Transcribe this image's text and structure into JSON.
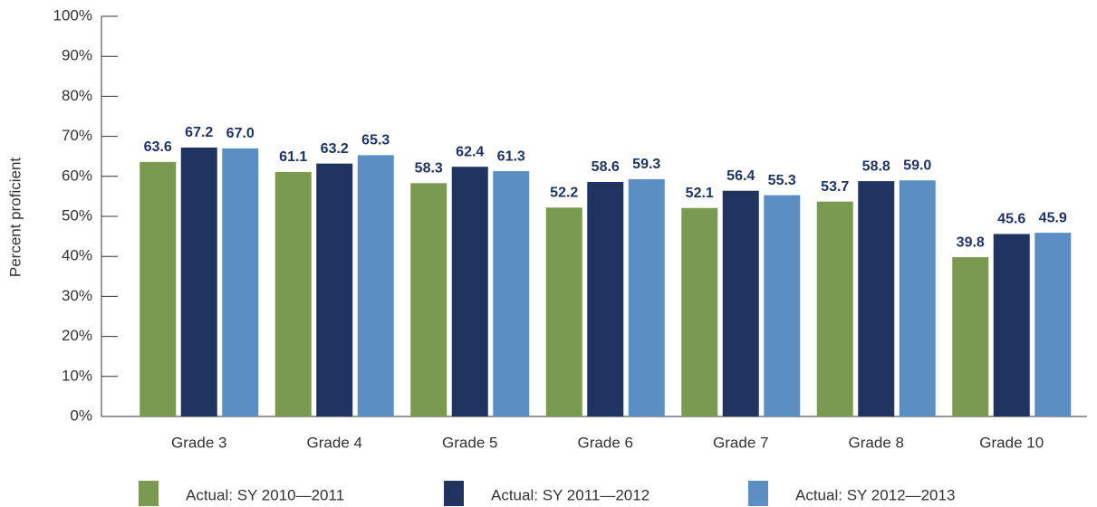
{
  "chart_data": {
    "type": "bar",
    "y_label": "Percent proficient",
    "categories": [
      "Grade 3",
      "Grade 4",
      "Grade 5",
      "Grade 6",
      "Grade 7",
      "Grade 8",
      "Grade 10"
    ],
    "series": [
      {
        "name": "Actual: SY 2010—2011",
        "color": "#7a9a4f",
        "values": [
          63.6,
          61.1,
          58.3,
          52.2,
          52.1,
          53.7,
          39.8
        ]
      },
      {
        "name": "Actual: SY 2011—2012",
        "color": "#1f3461",
        "values": [
          67.2,
          63.2,
          62.4,
          58.6,
          56.4,
          58.8,
          45.6
        ]
      },
      {
        "name": "Actual: SY 2012—2013",
        "color": "#5b8fc3",
        "values": [
          67,
          65.3,
          61.3,
          59.3,
          55.3,
          59,
          45.9
        ],
        "value_labels": [
          "67.0",
          "65.3",
          "61.3",
          "59.3",
          "55.3",
          "59.0",
          "45.9"
        ]
      }
    ],
    "ylim": [
      0,
      100
    ],
    "yticks": [
      {
        "value": 0,
        "label": "0%"
      },
      {
        "value": 10,
        "label": "10%"
      },
      {
        "value": 20,
        "label": "20%"
      },
      {
        "value": 30,
        "label": "30%"
      },
      {
        "value": 40,
        "label": "40%"
      },
      {
        "value": 50,
        "label": "50%"
      },
      {
        "value": 60,
        "label": "60%"
      },
      {
        "value": 70,
        "label": "70%"
      },
      {
        "value": 80,
        "label": "80%"
      },
      {
        "value": 90,
        "label": "90%"
      },
      {
        "value": 100,
        "label": "100%"
      }
    ],
    "grid": false,
    "legend": "bottom"
  }
}
